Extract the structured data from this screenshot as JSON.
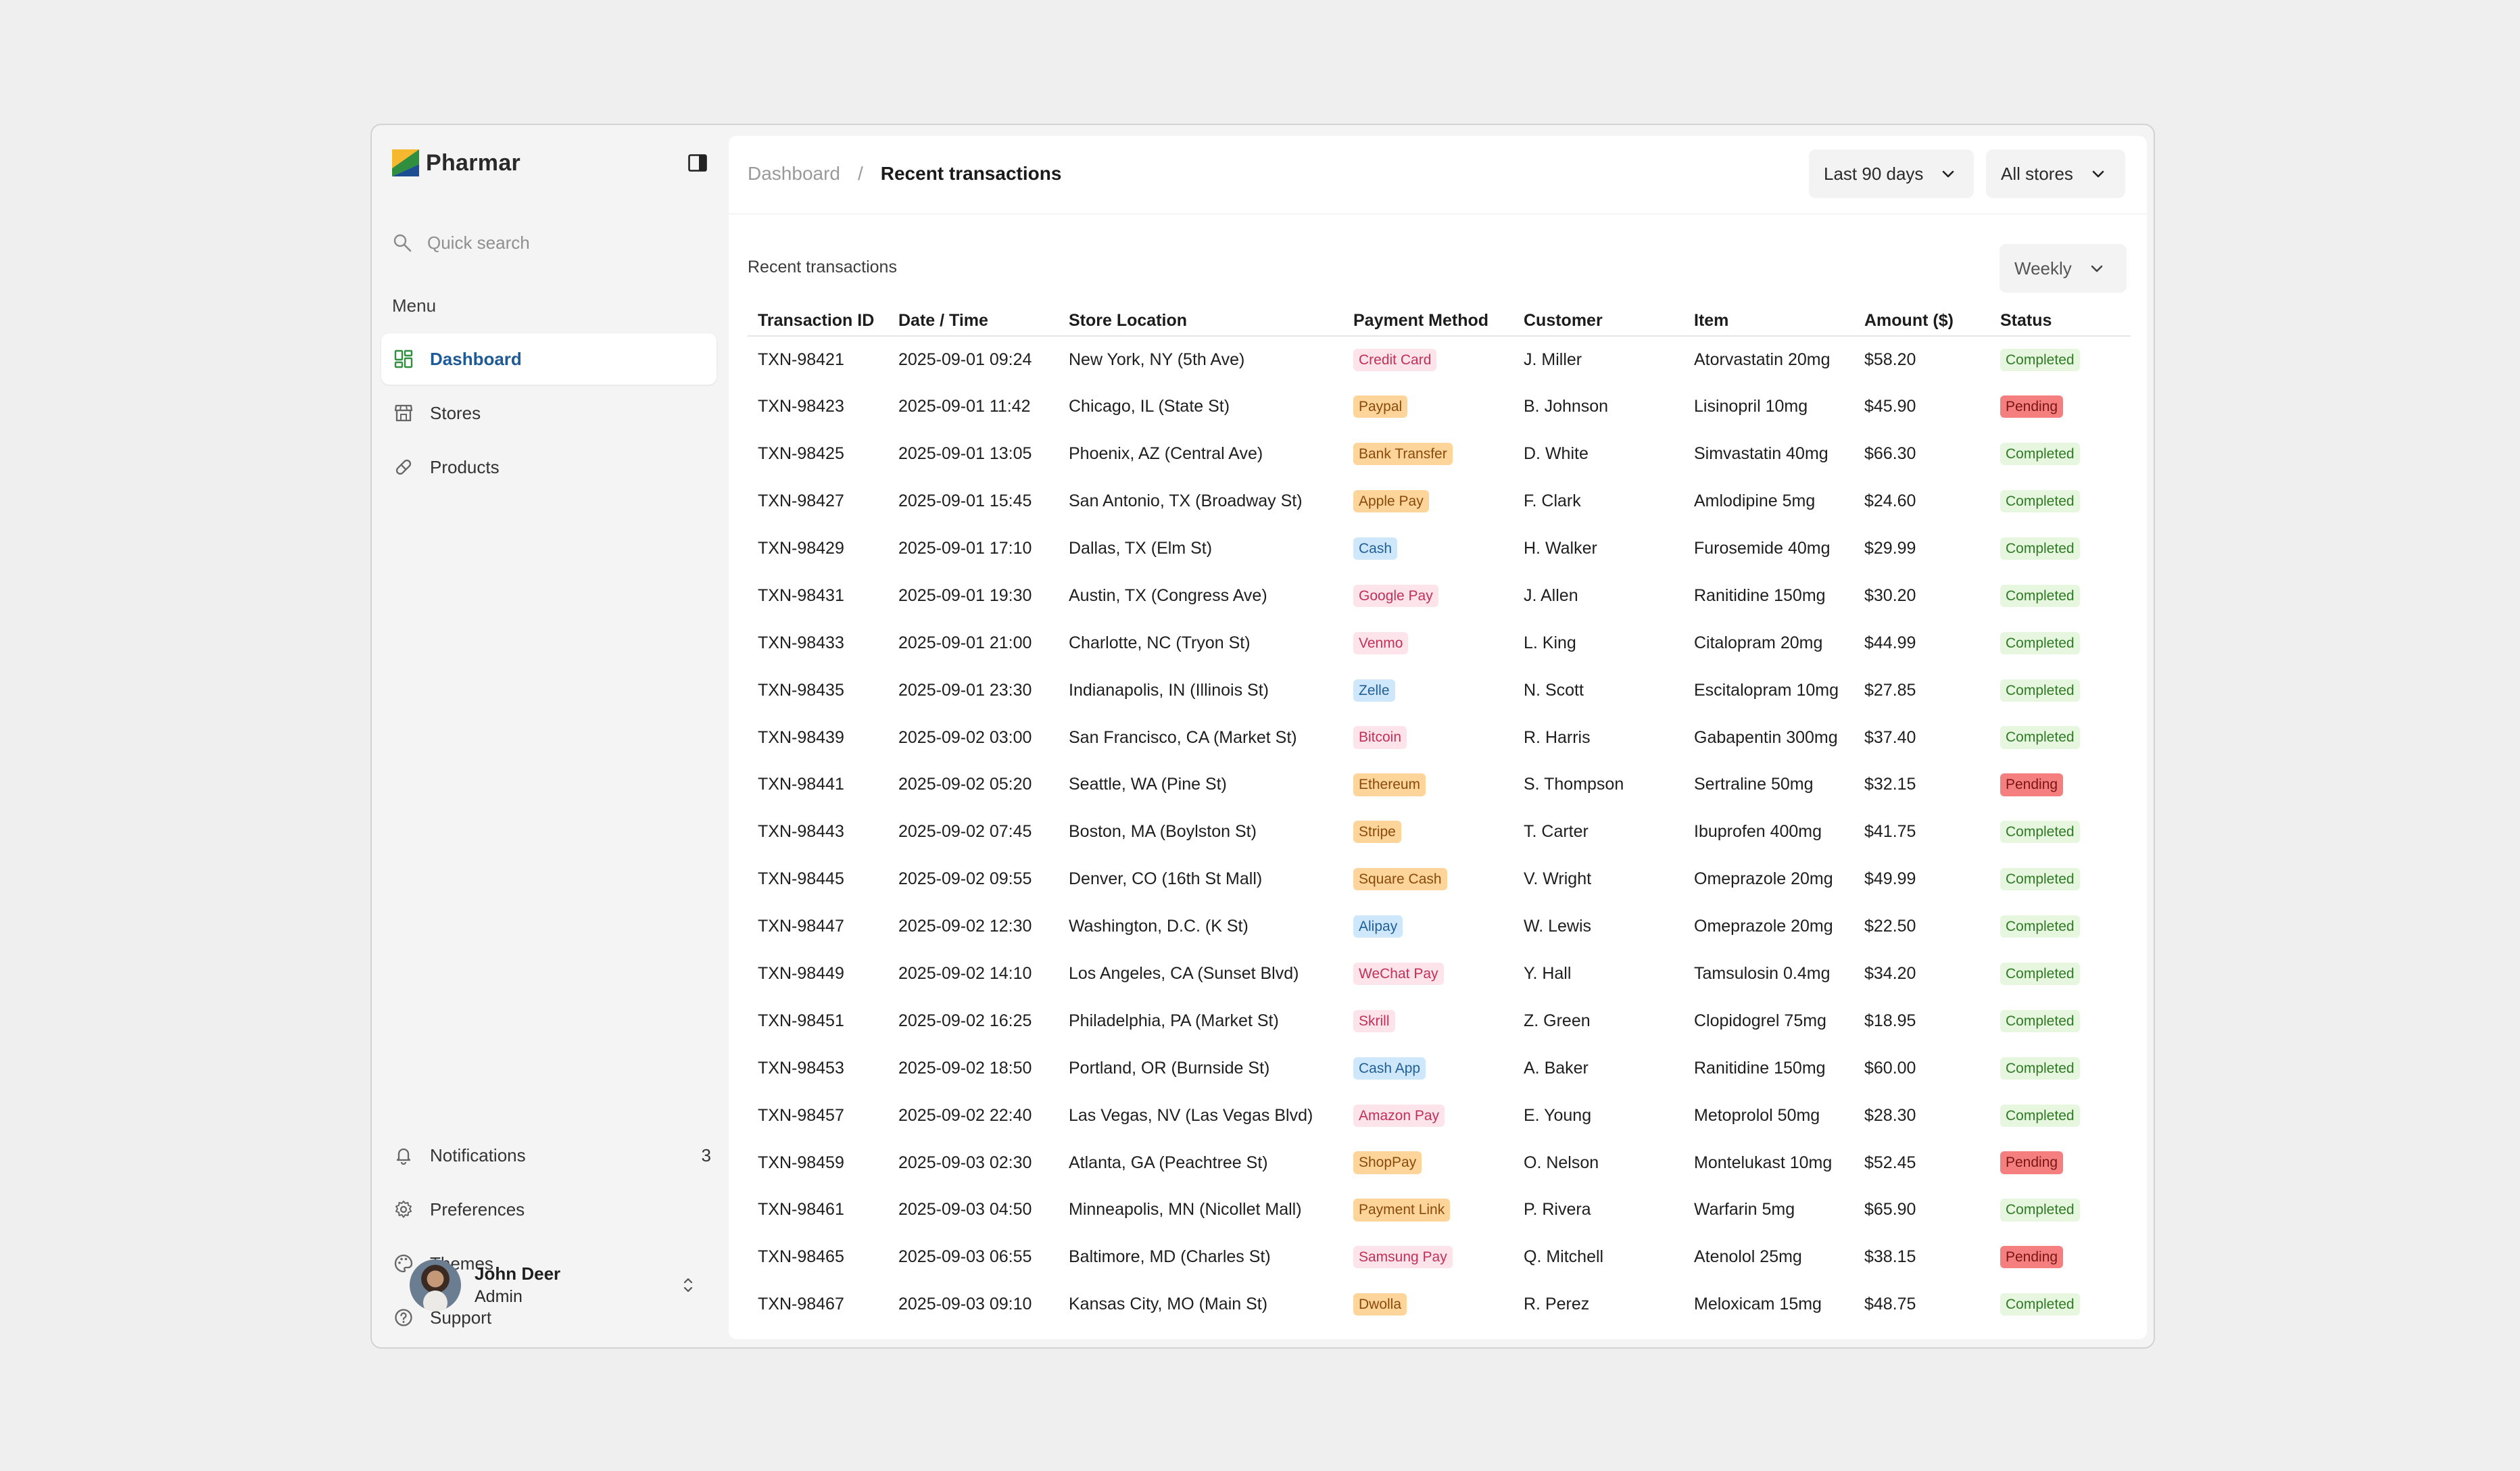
{
  "app": {
    "name": "Pharmar"
  },
  "sidebar": {
    "search_placeholder": "Quick search",
    "menu_heading": "Menu",
    "items": [
      {
        "label": "Dashboard",
        "icon": "dashboard-icon",
        "active": true
      },
      {
        "label": "Stores",
        "icon": "store-icon",
        "active": false
      },
      {
        "label": "Products",
        "icon": "pill-icon",
        "active": false
      }
    ],
    "bottom_items": [
      {
        "label": "Notifications",
        "icon": "bell-icon",
        "count": "3"
      },
      {
        "label": "Preferences",
        "icon": "gear-icon"
      },
      {
        "label": "Themes",
        "icon": "palette-icon"
      },
      {
        "label": "Support",
        "icon": "help-icon"
      }
    ],
    "user": {
      "name": "John Deer",
      "role": "Admin"
    }
  },
  "header": {
    "breadcrumb_root": "Dashboard",
    "breadcrumb_sep": "/",
    "breadcrumb_current": "Recent transactions",
    "range_label": "Last 90 days",
    "store_label": "All stores"
  },
  "section": {
    "title": "Recent transactions",
    "period_label": "Weekly"
  },
  "table": {
    "columns": [
      "Transaction ID",
      "Date / Time",
      "Store Location",
      "Payment Method",
      "Customer",
      "Item",
      "Amount ($)",
      "Status"
    ],
    "rows": [
      {
        "id": "TXN-98421",
        "date": "2025-09-01 09:24",
        "store": "New York, NY (5th Ave)",
        "payment": "Credit Card",
        "pay_color": "pink",
        "customer": "J. Miller",
        "item": "Atorvastatin 20mg",
        "amount": "$58.20",
        "status": "Completed"
      },
      {
        "id": "TXN-98423",
        "date": "2025-09-01 11:42",
        "store": "Chicago, IL (State St)",
        "payment": "Paypal",
        "pay_color": "orange",
        "customer": "B. Johnson",
        "item": "Lisinopril 10mg",
        "amount": "$45.90",
        "status": "Pending"
      },
      {
        "id": "TXN-98425",
        "date": "2025-09-01 13:05",
        "store": "Phoenix, AZ (Central Ave)",
        "payment": "Bank Transfer",
        "pay_color": "orange",
        "customer": "D. White",
        "item": "Simvastatin 40mg",
        "amount": "$66.30",
        "status": "Completed"
      },
      {
        "id": "TXN-98427",
        "date": "2025-09-01 15:45",
        "store": "San Antonio, TX (Broadway St)",
        "payment": "Apple Pay",
        "pay_color": "orange",
        "customer": "F. Clark",
        "item": "Amlodipine 5mg",
        "amount": "$24.60",
        "status": "Completed"
      },
      {
        "id": "TXN-98429",
        "date": "2025-09-01 17:10",
        "store": "Dallas, TX (Elm St)",
        "payment": "Cash",
        "pay_color": "blue",
        "customer": "H. Walker",
        "item": "Furosemide 40mg",
        "amount": "$29.99",
        "status": "Completed"
      },
      {
        "id": "TXN-98431",
        "date": "2025-09-01 19:30",
        "store": "Austin, TX (Congress Ave)",
        "payment": "Google Pay",
        "pay_color": "pink",
        "customer": "J. Allen",
        "item": "Ranitidine 150mg",
        "amount": "$30.20",
        "status": "Completed"
      },
      {
        "id": "TXN-98433",
        "date": "2025-09-01 21:00",
        "store": "Charlotte, NC (Tryon St)",
        "payment": "Venmo",
        "pay_color": "pink",
        "customer": "L. King",
        "item": "Citalopram 20mg",
        "amount": "$44.99",
        "status": "Completed"
      },
      {
        "id": "TXN-98435",
        "date": "2025-09-01 23:30",
        "store": "Indianapolis, IN (Illinois St)",
        "payment": "Zelle",
        "pay_color": "blue",
        "customer": "N. Scott",
        "item": "Escitalopram 10mg",
        "amount": "$27.85",
        "status": "Completed"
      },
      {
        "id": "TXN-98439",
        "date": "2025-09-02 03:00",
        "store": "San Francisco, CA (Market St)",
        "payment": "Bitcoin",
        "pay_color": "pink",
        "customer": "R. Harris",
        "item": "Gabapentin 300mg",
        "amount": "$37.40",
        "status": "Completed"
      },
      {
        "id": "TXN-98441",
        "date": "2025-09-02 05:20",
        "store": "Seattle, WA (Pine St)",
        "payment": "Ethereum",
        "pay_color": "orange",
        "customer": "S. Thompson",
        "item": "Sertraline 50mg",
        "amount": "$32.15",
        "status": "Pending"
      },
      {
        "id": "TXN-98443",
        "date": "2025-09-02 07:45",
        "store": "Boston, MA (Boylston St)",
        "payment": "Stripe",
        "pay_color": "orange",
        "customer": "T. Carter",
        "item": "Ibuprofen 400mg",
        "amount": "$41.75",
        "status": "Completed"
      },
      {
        "id": "TXN-98445",
        "date": "2025-09-02 09:55",
        "store": "Denver, CO (16th St Mall)",
        "payment": "Square Cash",
        "pay_color": "orange",
        "customer": "V. Wright",
        "item": "Omeprazole 20mg",
        "amount": "$49.99",
        "status": "Completed"
      },
      {
        "id": "TXN-98447",
        "date": "2025-09-02 12:30",
        "store": "Washington, D.C. (K St)",
        "payment": "Alipay",
        "pay_color": "blue",
        "customer": "W. Lewis",
        "item": "Omeprazole 20mg",
        "amount": "$22.50",
        "status": "Completed"
      },
      {
        "id": "TXN-98449",
        "date": "2025-09-02 14:10",
        "store": "Los Angeles, CA (Sunset Blvd)",
        "payment": "WeChat Pay",
        "pay_color": "pink",
        "customer": "Y. Hall",
        "item": "Tamsulosin 0.4mg",
        "amount": "$34.20",
        "status": "Completed"
      },
      {
        "id": "TXN-98451",
        "date": "2025-09-02 16:25",
        "store": "Philadelphia, PA (Market St)",
        "payment": "Skrill",
        "pay_color": "pink",
        "customer": "Z. Green",
        "item": "Clopidogrel 75mg",
        "amount": "$18.95",
        "status": "Completed"
      },
      {
        "id": "TXN-98453",
        "date": "2025-09-02 18:50",
        "store": "Portland, OR (Burnside St)",
        "payment": "Cash App",
        "pay_color": "blue",
        "customer": "A. Baker",
        "item": "Ranitidine 150mg",
        "amount": "$60.00",
        "status": "Completed"
      },
      {
        "id": "TXN-98457",
        "date": "2025-09-02 22:40",
        "store": "Las Vegas, NV (Las Vegas Blvd)",
        "payment": "Amazon Pay",
        "pay_color": "pink",
        "customer": "E. Young",
        "item": "Metoprolol 50mg",
        "amount": "$28.30",
        "status": "Completed"
      },
      {
        "id": "TXN-98459",
        "date": "2025-09-03 02:30",
        "store": "Atlanta, GA (Peachtree St)",
        "payment": "ShopPay",
        "pay_color": "orange",
        "customer": "O. Nelson",
        "item": "Montelukast 10mg",
        "amount": "$52.45",
        "status": "Pending"
      },
      {
        "id": "TXN-98461",
        "date": "2025-09-03 04:50",
        "store": "Minneapolis, MN (Nicollet Mall)",
        "payment": "Payment Link",
        "pay_color": "orange",
        "customer": "P. Rivera",
        "item": "Warfarin 5mg",
        "amount": "$65.90",
        "status": "Completed"
      },
      {
        "id": "TXN-98465",
        "date": "2025-09-03 06:55",
        "store": "Baltimore, MD (Charles St)",
        "payment": "Samsung Pay",
        "pay_color": "pink",
        "customer": "Q. Mitchell",
        "item": "Atenolol 25mg",
        "amount": "$38.15",
        "status": "Pending"
      },
      {
        "id": "TXN-98467",
        "date": "2025-09-03 09:10",
        "store": "Kansas City, MO (Main St)",
        "payment": "Dwolla",
        "pay_color": "orange",
        "customer": "R. Perez",
        "item": "Meloxicam 15mg",
        "amount": "$48.75",
        "status": "Completed"
      }
    ]
  },
  "colors": {
    "accent": "#1d5a96",
    "logo_yellow": "#f5b82e",
    "logo_green": "#2f8f3e",
    "logo_blue": "#1d4e91"
  }
}
